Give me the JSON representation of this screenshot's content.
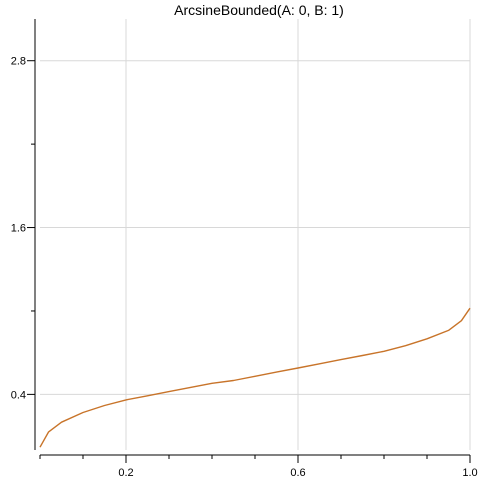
{
  "chart_data": {
    "type": "line",
    "title": "ArcsineBounded(A: 0, B: 1)",
    "xlabel": "",
    "ylabel": "",
    "xlim": [
      0,
      1.0
    ],
    "ylim": [
      0,
      3.1
    ],
    "x_ticks": [
      0.2,
      0.6,
      1.0
    ],
    "x_tick_labels": [
      "0.2",
      "0.6",
      "1.0"
    ],
    "x_minor_ticks": [
      0.1,
      0.3,
      0.4,
      0.5,
      0.7,
      0.8,
      0.9
    ],
    "y_ticks": [
      0.4,
      1.6,
      2.8
    ],
    "y_tick_labels": [
      "0.4",
      "1.6",
      "2.8"
    ],
    "y_minor_ticks": [
      1.0,
      2.2
    ],
    "grid": true,
    "legend": "none",
    "series": [
      {
        "color": "#c8742a",
        "x": [
          0.0,
          0.02,
          0.05,
          0.1,
          0.15,
          0.2,
          0.25,
          0.3,
          0.35,
          0.4,
          0.45,
          0.5,
          0.55,
          0.6,
          0.65,
          0.7,
          0.75,
          0.8,
          0.85,
          0.9,
          0.95,
          0.98,
          1.0
        ],
        "y": [
          0.02,
          0.13,
          0.2,
          0.27,
          0.32,
          0.36,
          0.39,
          0.42,
          0.45,
          0.48,
          0.5,
          0.53,
          0.56,
          0.59,
          0.62,
          0.65,
          0.68,
          0.71,
          0.75,
          0.8,
          0.86,
          0.93,
          1.02
        ]
      }
    ]
  }
}
